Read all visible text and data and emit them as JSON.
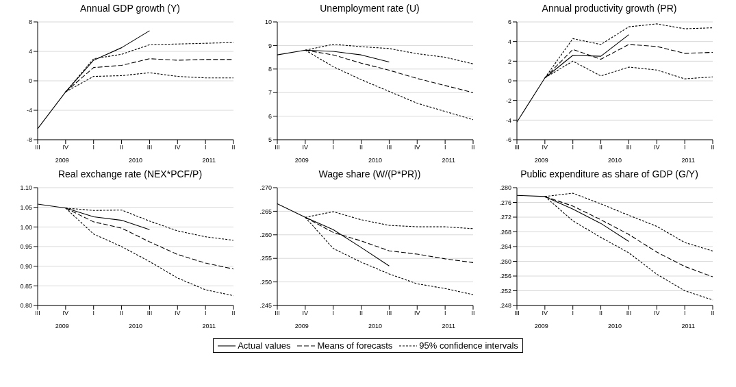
{
  "chart_data": [
    {
      "type": "line",
      "title": "Annual GDP growth (Y)",
      "categories": [
        "III",
        "IV",
        "I",
        "II",
        "III",
        "IV",
        "I",
        "II"
      ],
      "annotations": [
        "2009",
        "2010",
        "2011"
      ],
      "ylim": [
        -8,
        8
      ],
      "yticks": [
        -8,
        -4,
        0,
        4,
        8
      ],
      "grid": "y",
      "legend": "bottom",
      "series": [
        {
          "name": "Actual values",
          "color": "#000000",
          "line_style": "solid",
          "values": [
            -6.5,
            -1.5,
            2.8,
            4.5,
            6.8,
            null,
            null,
            null
          ]
        },
        {
          "name": "Means of forecasts",
          "color": "#000000",
          "line_style": "dashed",
          "values": [
            null,
            -1.5,
            1.8,
            2.1,
            3.0,
            2.8,
            2.9,
            2.9
          ]
        },
        {
          "name": "95% confidence intervals",
          "color": "#000000",
          "line_style": "dotted",
          "values": [
            null,
            -1.5,
            3.0,
            3.6,
            4.9,
            5.0,
            5.1,
            5.2
          ]
        },
        {
          "color": "#000000",
          "line_style": "dotted",
          "values": [
            null,
            -1.5,
            0.6,
            0.7,
            1.1,
            0.6,
            0.4,
            0.4
          ]
        }
      ]
    },
    {
      "type": "line",
      "title": "Unemployment rate (U)",
      "categories": [
        "III",
        "IV",
        "I",
        "II",
        "III",
        "IV",
        "I",
        "II"
      ],
      "annotations": [
        "2009",
        "2010",
        "2011"
      ],
      "ylim": [
        5,
        10
      ],
      "yticks": [
        5,
        6,
        7,
        8,
        9,
        10
      ],
      "grid": "y",
      "series": [
        {
          "color": "#000000",
          "line_style": "solid",
          "values": [
            8.6,
            8.8,
            8.75,
            8.6,
            8.3,
            null,
            null,
            null
          ]
        },
        {
          "color": "#000000",
          "line_style": "dashed",
          "values": [
            null,
            8.8,
            8.6,
            8.25,
            7.95,
            7.6,
            7.3,
            7.0
          ]
        },
        {
          "color": "#000000",
          "line_style": "dotted",
          "values": [
            null,
            8.8,
            9.05,
            8.95,
            8.87,
            8.65,
            8.5,
            8.22
          ]
        },
        {
          "color": "#000000",
          "line_style": "dotted",
          "values": [
            null,
            8.8,
            8.1,
            7.55,
            7.05,
            6.55,
            6.2,
            5.85
          ]
        }
      ]
    },
    {
      "type": "line",
      "title": "Annual productivity growth (PR)",
      "categories": [
        "III",
        "IV",
        "I",
        "II",
        "III",
        "IV",
        "I",
        "II"
      ],
      "annotations": [
        "2009",
        "2010",
        "2011"
      ],
      "ylim": [
        -6,
        6
      ],
      "yticks": [
        -6,
        -4,
        -2,
        0,
        2,
        4,
        6
      ],
      "grid": "y",
      "series": [
        {
          "color": "#000000",
          "line_style": "solid",
          "values": [
            -4.2,
            0.3,
            2.6,
            2.5,
            4.7,
            null,
            null,
            null
          ]
        },
        {
          "color": "#000000",
          "line_style": "dashed",
          "values": [
            null,
            0.3,
            3.2,
            2.2,
            3.7,
            3.5,
            2.8,
            2.9
          ]
        },
        {
          "color": "#000000",
          "line_style": "dotted",
          "values": [
            null,
            0.3,
            4.3,
            3.7,
            5.5,
            5.8,
            5.3,
            5.4
          ]
        },
        {
          "color": "#000000",
          "line_style": "dotted",
          "values": [
            null,
            0.3,
            2.0,
            0.5,
            1.4,
            1.1,
            0.2,
            0.4
          ]
        }
      ]
    },
    {
      "type": "line",
      "title": "Real exchange rate (NEX*PCF/P)",
      "categories": [
        "III",
        "IV",
        "I",
        "II",
        "III",
        "IV",
        "I",
        "II"
      ],
      "annotations": [
        "2009",
        "2010",
        "2011"
      ],
      "ylim": [
        0.8,
        1.1
      ],
      "yticks": [
        {
          "value": 0.8,
          "label": "0.80"
        },
        {
          "value": 0.85,
          "label": "0.85"
        },
        {
          "value": 0.9,
          "label": "0.90"
        },
        {
          "value": 0.95,
          "label": "0.95"
        },
        {
          "value": 1.0,
          "label": "1.00"
        },
        {
          "value": 1.05,
          "label": "1.05"
        },
        {
          "value": 1.1,
          "label": "1.10"
        }
      ],
      "grid": "y",
      "series": [
        {
          "color": "#000000",
          "line_style": "solid",
          "values": [
            1.058,
            1.048,
            1.026,
            1.017,
            0.993,
            null,
            null,
            null
          ]
        },
        {
          "color": "#000000",
          "line_style": "dashed",
          "values": [
            null,
            1.048,
            1.013,
            0.997,
            0.962,
            0.93,
            0.908,
            0.893
          ]
        },
        {
          "color": "#000000",
          "line_style": "dotted",
          "values": [
            null,
            1.048,
            1.042,
            1.043,
            1.015,
            0.99,
            0.975,
            0.966
          ]
        },
        {
          "color": "#000000",
          "line_style": "dotted",
          "values": [
            null,
            1.048,
            0.982,
            0.95,
            0.912,
            0.87,
            0.84,
            0.825
          ]
        }
      ]
    },
    {
      "type": "line",
      "title": "Wage share (W/(P*PR))",
      "categories": [
        "III",
        "IV",
        "I",
        "II",
        "III",
        "IV",
        "I",
        "II"
      ],
      "annotations": [
        "2009",
        "2010",
        "2011"
      ],
      "ylim": [
        0.245,
        0.27
      ],
      "yticks": [
        {
          "value": 0.245,
          "label": ".245"
        },
        {
          "value": 0.25,
          "label": ".250"
        },
        {
          "value": 0.255,
          "label": ".255"
        },
        {
          "value": 0.26,
          "label": ".260"
        },
        {
          "value": 0.265,
          "label": ".265"
        },
        {
          "value": 0.27,
          "label": ".270"
        }
      ],
      "grid": "y",
      "series": [
        {
          "color": "#000000",
          "line_style": "solid",
          "values": [
            0.2666,
            0.2637,
            0.2611,
            0.2573,
            0.2534,
            null,
            null,
            null
          ]
        },
        {
          "color": "#000000",
          "line_style": "dashed",
          "values": [
            null,
            0.2637,
            0.2605,
            0.2587,
            0.2566,
            0.2559,
            0.2549,
            0.2541
          ]
        },
        {
          "color": "#000000",
          "line_style": "dotted",
          "values": [
            null,
            0.2637,
            0.2649,
            0.2632,
            0.262,
            0.2617,
            0.2617,
            0.2613
          ]
        },
        {
          "color": "#000000",
          "line_style": "dotted",
          "values": [
            null,
            0.2637,
            0.2571,
            0.2542,
            0.2517,
            0.2496,
            0.2486,
            0.2473
          ]
        }
      ]
    },
    {
      "type": "line",
      "title": "Public expenditure as share of GDP (G/Y)",
      "categories": [
        "III",
        "IV",
        "I",
        "II",
        "III",
        "IV",
        "I",
        "II"
      ],
      "annotations": [
        "2009",
        "2010",
        "2011"
      ],
      "ylim": [
        0.248,
        0.28
      ],
      "yticks": [
        {
          "value": 0.248,
          "label": ".248"
        },
        {
          "value": 0.252,
          "label": ".252"
        },
        {
          "value": 0.256,
          "label": ".256"
        },
        {
          "value": 0.26,
          "label": ".260"
        },
        {
          "value": 0.264,
          "label": ".264"
        },
        {
          "value": 0.268,
          "label": ".268"
        },
        {
          "value": 0.272,
          "label": ".272"
        },
        {
          "value": 0.276,
          "label": ".276"
        },
        {
          "value": 0.28,
          "label": ".280"
        }
      ],
      "grid": "y",
      "series": [
        {
          "color": "#000000",
          "line_style": "solid",
          "values": [
            0.2779,
            0.2776,
            0.2742,
            0.2703,
            0.2654,
            null,
            null,
            null
          ]
        },
        {
          "color": "#000000",
          "line_style": "dashed",
          "values": [
            null,
            0.2776,
            0.275,
            0.2713,
            0.2673,
            0.2625,
            0.2586,
            0.2558
          ]
        },
        {
          "color": "#000000",
          "line_style": "dotted",
          "values": [
            null,
            0.2776,
            0.2785,
            0.2756,
            0.2725,
            0.2695,
            0.2651,
            0.2628
          ]
        },
        {
          "color": "#000000",
          "line_style": "dotted",
          "values": [
            null,
            0.2776,
            0.271,
            0.2665,
            0.2623,
            0.2565,
            0.252,
            0.2495
          ]
        }
      ]
    }
  ]
}
